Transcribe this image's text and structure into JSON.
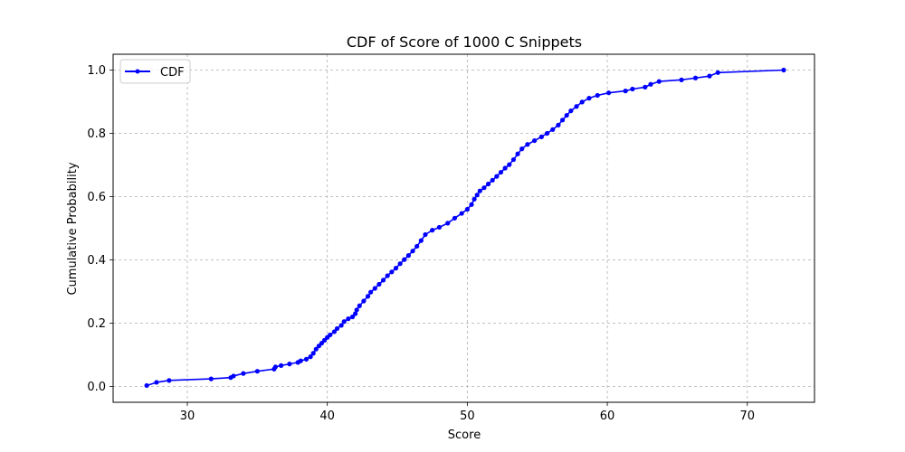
{
  "chart_data": {
    "type": "line",
    "title": "CDF of Score of 1000 C Snippets",
    "xlabel": "Score",
    "ylabel": "Cumulative Probability",
    "xlim": [
      24.7,
      74.8
    ],
    "ylim": [
      -0.05,
      1.05
    ],
    "xticks": [
      30,
      40,
      50,
      60,
      70
    ],
    "yticks": [
      0.0,
      0.2,
      0.4,
      0.6,
      0.8,
      1.0
    ],
    "xtick_labels": [
      "30",
      "40",
      "50",
      "60",
      "70"
    ],
    "ytick_labels": [
      "0.0",
      "0.2",
      "0.4",
      "0.6",
      "0.8",
      "1.0"
    ],
    "grid": true,
    "grid_style": "dashed",
    "legend_position": "top-left",
    "series": [
      {
        "name": "CDF",
        "color": "#0000ff",
        "marker": "circle",
        "x": [
          27.1,
          27.8,
          28.7,
          31.7,
          33.1,
          33.3,
          34.0,
          35.0,
          36.2,
          36.3,
          36.7,
          37.3,
          37.9,
          38.1,
          38.5,
          38.8,
          39.0,
          39.2,
          39.4,
          39.6,
          39.8,
          40.0,
          40.2,
          40.5,
          40.7,
          41.0,
          41.2,
          41.5,
          41.8,
          42.0,
          42.1,
          42.3,
          42.6,
          42.9,
          43.1,
          43.4,
          43.7,
          44.0,
          44.3,
          44.6,
          44.9,
          45.2,
          45.5,
          45.8,
          46.1,
          46.4,
          46.7,
          47.0,
          47.5,
          48.0,
          48.6,
          49.1,
          49.6,
          50.0,
          50.3,
          50.5,
          50.7,
          50.9,
          51.2,
          51.5,
          51.8,
          52.1,
          52.4,
          52.7,
          53.0,
          53.3,
          53.6,
          53.9,
          54.3,
          54.8,
          55.3,
          55.7,
          56.1,
          56.5,
          56.8,
          57.1,
          57.4,
          57.8,
          58.2,
          58.7,
          59.3,
          60.1,
          61.3,
          61.8,
          62.7,
          63.1,
          63.7,
          65.3,
          66.3,
          67.3,
          67.9,
          72.6
        ],
        "y": [
          0.003,
          0.013,
          0.019,
          0.024,
          0.028,
          0.033,
          0.041,
          0.048,
          0.055,
          0.062,
          0.066,
          0.071,
          0.076,
          0.081,
          0.086,
          0.094,
          0.105,
          0.118,
          0.128,
          0.137,
          0.146,
          0.155,
          0.163,
          0.173,
          0.183,
          0.193,
          0.205,
          0.214,
          0.22,
          0.23,
          0.242,
          0.255,
          0.27,
          0.285,
          0.298,
          0.31,
          0.323,
          0.336,
          0.35,
          0.362,
          0.374,
          0.388,
          0.401,
          0.414,
          0.428,
          0.443,
          0.461,
          0.48,
          0.494,
          0.503,
          0.516,
          0.532,
          0.547,
          0.56,
          0.575,
          0.592,
          0.605,
          0.618,
          0.628,
          0.64,
          0.652,
          0.664,
          0.677,
          0.69,
          0.701,
          0.717,
          0.735,
          0.751,
          0.765,
          0.777,
          0.789,
          0.8,
          0.812,
          0.826,
          0.842,
          0.857,
          0.871,
          0.885,
          0.899,
          0.911,
          0.92,
          0.928,
          0.934,
          0.94,
          0.946,
          0.955,
          0.964,
          0.969,
          0.975,
          0.981,
          0.992,
          1.0
        ]
      }
    ]
  }
}
